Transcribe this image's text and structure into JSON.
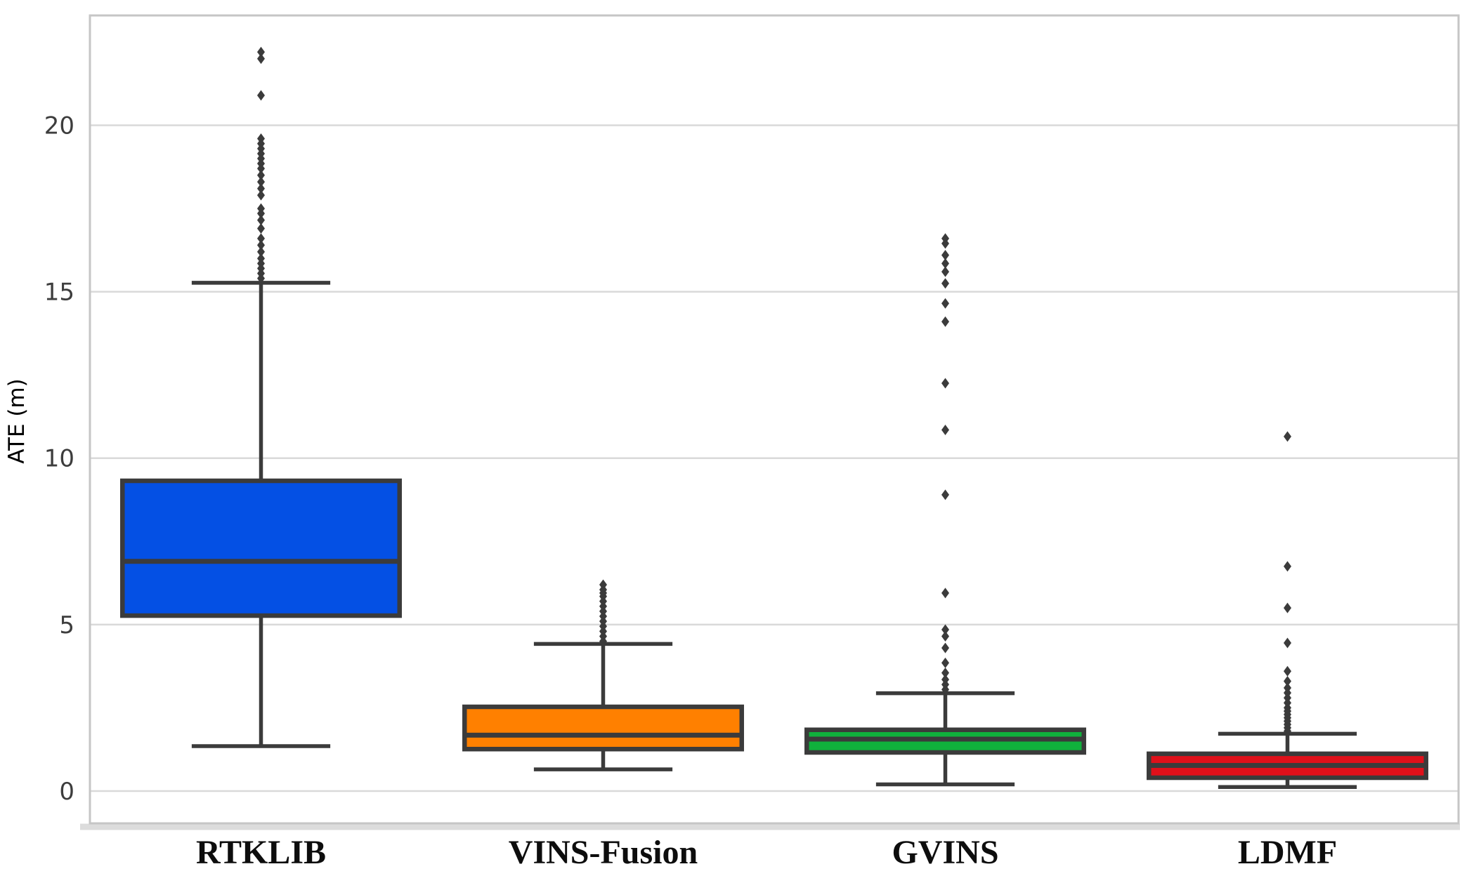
{
  "chart_data": {
    "type": "box",
    "title": "",
    "ylabel": "ATE (m)",
    "categories": [
      "RTKLIB",
      "VINS-Fusion",
      "GVINS",
      "LDMF"
    ],
    "yticks": [
      0,
      5,
      10,
      15,
      20
    ],
    "ylim": [
      -0.97,
      23.3
    ],
    "grid": "horizontal",
    "legend": "none",
    "styles": {
      "box_edge_color": "#3b3b3b",
      "whisker_color": "#3b3b3b",
      "outlier_color": "#3b3b3b",
      "grid_color": "#d9d9d9",
      "spine_color": "#c6c6c6",
      "bottom_band_color": "#dcdcdc",
      "tick_label_color": "#3d3d3d",
      "axis_label_color": "#3d3d3d",
      "category_label_color": "#0d0d0d",
      "background": "#ffffff"
    },
    "series": [
      {
        "name": "RTKLIB",
        "color": "#0450E4",
        "whisker_low": 1.35,
        "q1": 5.27,
        "median": 6.9,
        "q3": 9.32,
        "whisker_high": 15.27,
        "outliers": [
          22.2,
          22.0,
          20.9,
          19.6,
          19.45,
          19.3,
          19.15,
          19.0,
          18.85,
          18.7,
          18.5,
          18.3,
          18.1,
          17.9,
          17.5,
          17.35,
          17.15,
          16.9,
          16.6,
          16.4,
          16.2,
          16.0,
          15.85,
          15.7,
          15.55,
          15.4
        ]
      },
      {
        "name": "VINS-Fusion",
        "color": "#FF8000",
        "whisker_low": 0.65,
        "q1": 1.26,
        "median": 1.68,
        "q3": 2.53,
        "whisker_high": 4.42,
        "outliers": [
          6.2,
          6.05,
          5.95,
          5.85,
          5.7,
          5.55,
          5.4,
          5.25,
          5.1,
          4.95,
          4.8,
          4.65,
          4.5
        ]
      },
      {
        "name": "GVINS",
        "color": "#10B13C",
        "whisker_low": 0.2,
        "q1": 1.16,
        "median": 1.56,
        "q3": 1.84,
        "whisker_high": 2.94,
        "outliers": [
          16.6,
          16.45,
          16.1,
          15.85,
          15.6,
          15.25,
          14.65,
          14.1,
          12.25,
          10.85,
          8.9,
          5.95,
          4.85,
          4.65,
          4.3,
          3.85,
          3.55,
          3.35,
          3.2,
          3.05
        ]
      },
      {
        "name": "LDMF",
        "color": "#E0101A",
        "whisker_low": 0.12,
        "q1": 0.4,
        "median": 0.77,
        "q3": 1.12,
        "whisker_high": 1.72,
        "outliers": [
          10.65,
          6.75,
          5.5,
          4.45,
          3.6,
          3.3,
          3.1,
          2.95,
          2.8,
          2.65,
          2.5,
          2.4,
          2.3,
          2.2,
          2.1,
          2.0,
          1.9,
          1.8
        ]
      }
    ]
  }
}
